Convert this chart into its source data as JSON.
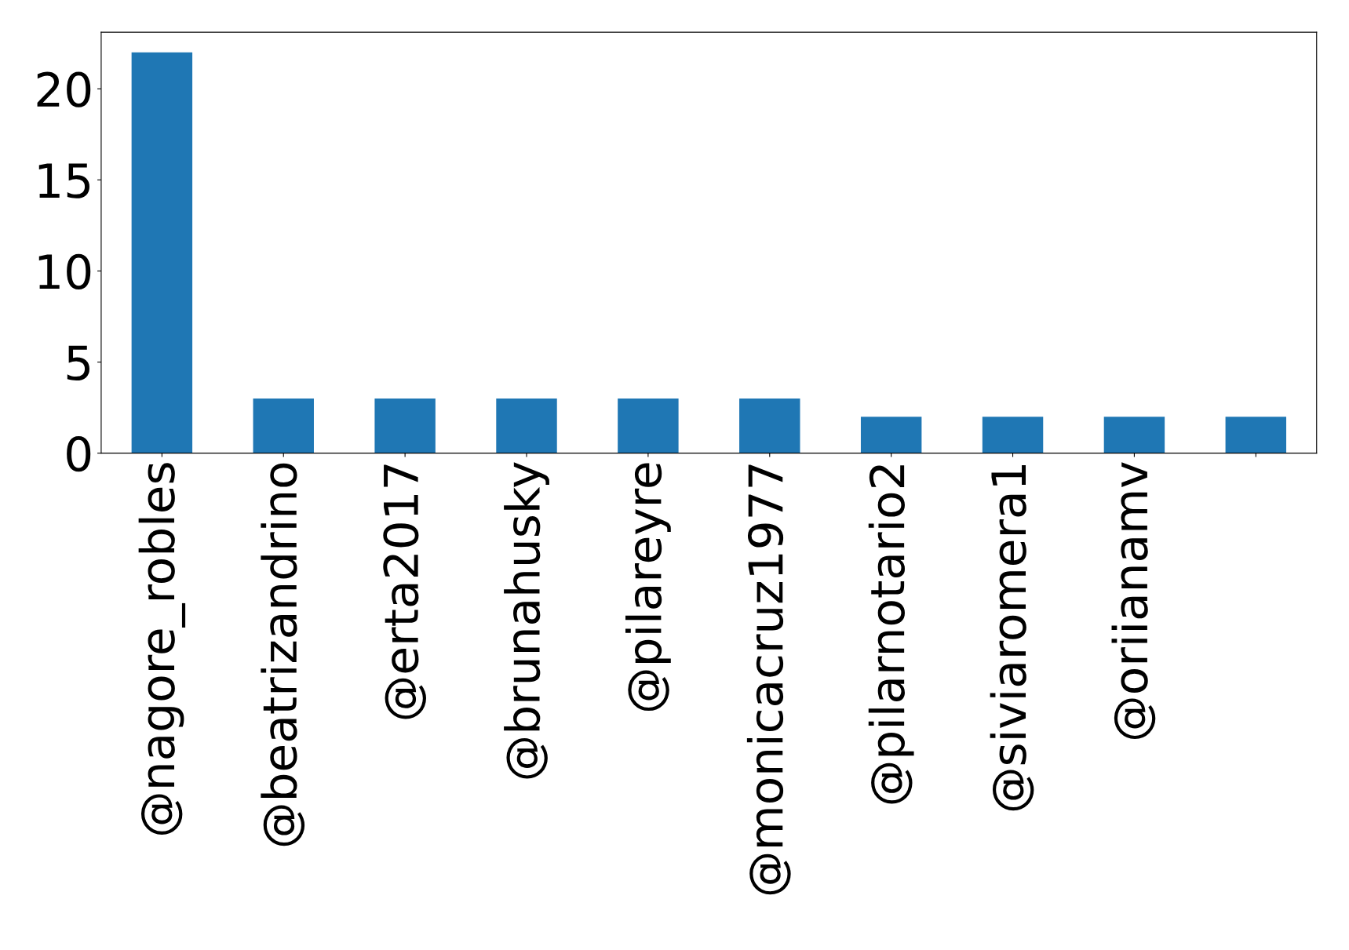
{
  "chart_data": {
    "type": "bar",
    "categories": [
      "@nagore_robles",
      "@beatrizandrino",
      "@erta2017",
      "@brunahusky",
      "@pilareyre",
      "@monicacruz1977",
      "@pilarnotario2",
      "@siviaromera1",
      "@oriianamv",
      null
    ],
    "values": [
      22,
      3,
      3,
      3,
      3,
      3,
      2,
      2,
      2,
      2
    ],
    "color": "#1f77b4",
    "ylim": [
      0,
      23.1
    ],
    "yticks": [
      0,
      5,
      10,
      15,
      20
    ],
    "grid": false,
    "legend": false
  }
}
